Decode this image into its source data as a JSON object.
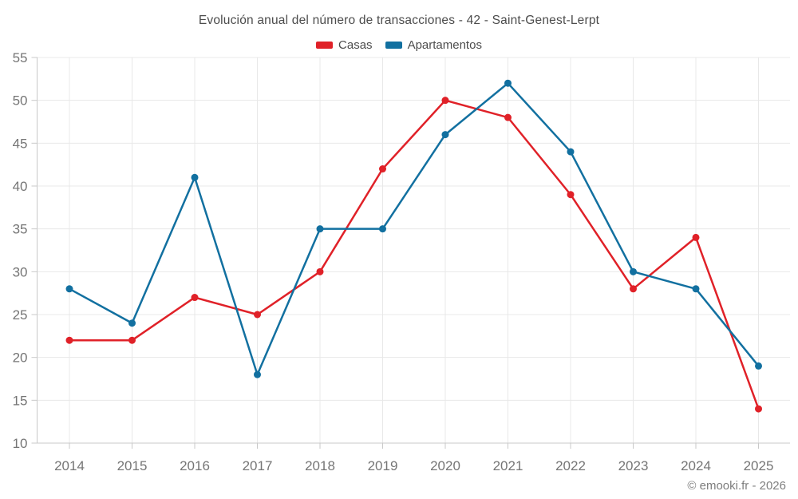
{
  "chart_data": {
    "type": "line",
    "title": "Evolución anual del número de transacciones - 42 - Saint-Genest-Lerpt",
    "categories": [
      "2014",
      "2015",
      "2016",
      "2017",
      "2018",
      "2019",
      "2020",
      "2021",
      "2022",
      "2023",
      "2024",
      "2025"
    ],
    "series": [
      {
        "id": "casas",
        "name": "Casas",
        "color": "#e02128",
        "values": [
          22,
          22,
          27,
          25,
          30,
          42,
          50,
          48,
          39,
          28,
          34,
          14
        ]
      },
      {
        "id": "apartamentos",
        "name": "Apartamentos",
        "color": "#1270a0",
        "values": [
          28,
          24,
          41,
          18,
          35,
          35,
          46,
          52,
          44,
          30,
          28,
          19
        ]
      }
    ],
    "xlabel": "",
    "ylabel": "",
    "ylim": [
      10,
      55
    ],
    "ytick_step": 5,
    "grid": true,
    "legend_position": "top"
  },
  "footer": {
    "text": "© emooki.fr - 2026"
  }
}
